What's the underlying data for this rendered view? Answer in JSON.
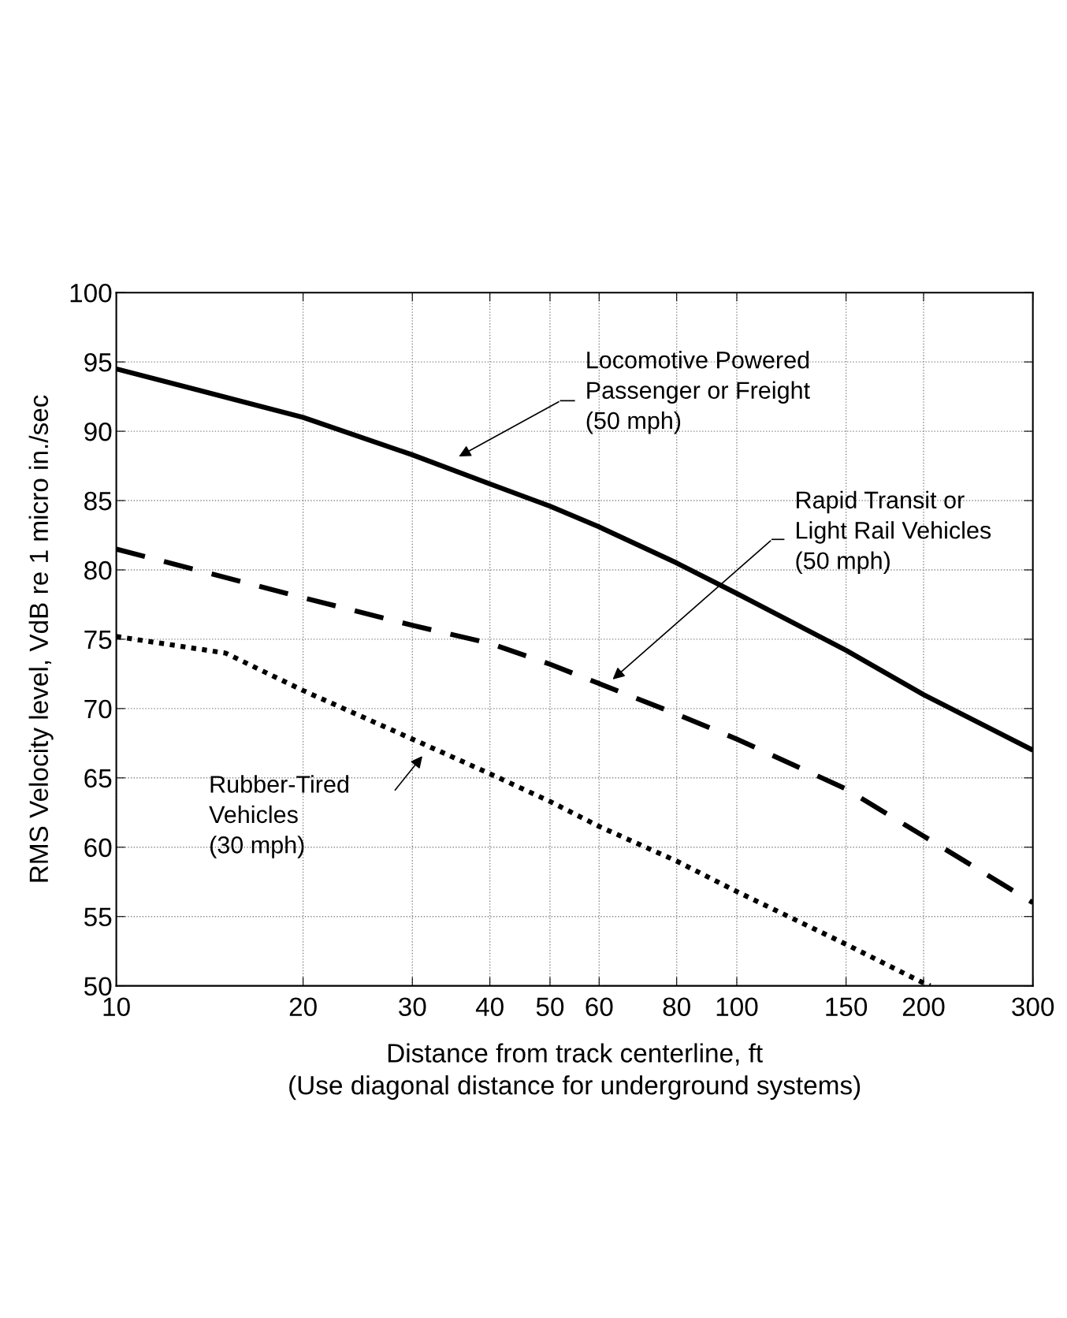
{
  "chart_data": {
    "type": "line",
    "xlabel": "Distance from track centerline, ft\n(Use diagonal distance for underground systems)",
    "ylabel": "RMS Velocity level, VdB re 1 micro in./sec",
    "log": "x",
    "xlim": [
      10,
      300
    ],
    "ylim": [
      50,
      100
    ],
    "xticks": [
      10,
      20,
      30,
      40,
      50,
      60,
      80,
      100,
      150,
      200,
      300
    ],
    "yticks": [
      50,
      55,
      60,
      65,
      70,
      75,
      80,
      85,
      90,
      95,
      100
    ],
    "grid": true,
    "legend": false,
    "series": [
      {
        "color": "#000000",
        "line_style": "solid",
        "x": [
          10,
          20,
          30,
          40,
          50,
          60,
          80,
          100,
          150,
          200,
          300
        ],
        "values": [
          94.5,
          91.0,
          88.3,
          86.2,
          84.6,
          83.1,
          80.5,
          78.3,
          74.2,
          71.0,
          67.0
        ]
      },
      {
        "color": "#000000",
        "line_style": "dashed",
        "x": [
          10,
          20,
          30,
          40,
          50,
          60,
          80,
          100,
          150,
          200,
          300
        ],
        "values": [
          81.5,
          78.0,
          76.0,
          74.7,
          73.2,
          71.8,
          69.6,
          67.8,
          64.2,
          60.8,
          56.0
        ]
      },
      {
        "color": "#000000",
        "line_style": "dotted",
        "x": [
          10,
          15,
          20,
          30,
          40,
          50,
          60,
          80,
          100,
          150,
          200,
          205
        ],
        "values": [
          75.2,
          74.0,
          71.3,
          67.8,
          65.3,
          63.3,
          61.5,
          59.0,
          56.8,
          53.0,
          50.2,
          50.0
        ]
      }
    ],
    "annotations": [
      "Locomotive Powered\nPassenger or Freight\n(50 mph)",
      "Rapid Transit or\nLight Rail Vehicles\n(50 mph)",
      "Rubber-Tired\nVehicles\n(30 mph)"
    ]
  }
}
